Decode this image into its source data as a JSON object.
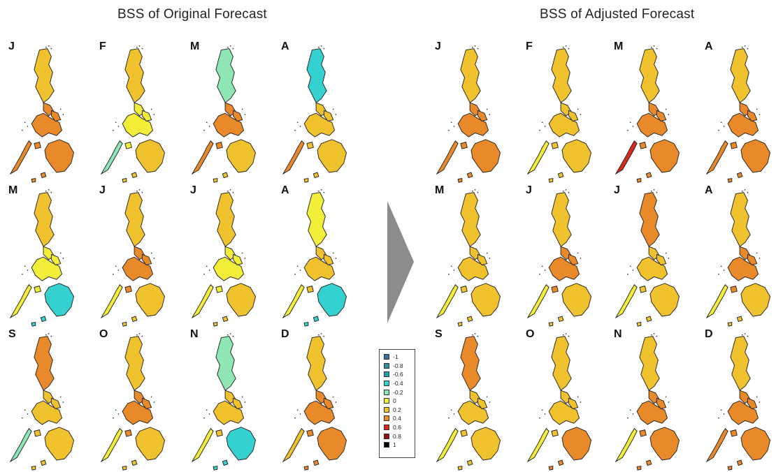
{
  "titles": {
    "left": "BSS of Original Forecast",
    "right": "BSS of Adjusted Forecast"
  },
  "months": [
    "J",
    "F",
    "M",
    "A",
    "M",
    "J",
    "J",
    "A",
    "S",
    "O",
    "N",
    "D"
  ],
  "legend": [
    {
      "label": "-1",
      "color": "#3a6f9a"
    },
    {
      "label": "-0.8",
      "color": "#2f8f9a"
    },
    {
      "label": "-0.6",
      "color": "#26a0a8"
    },
    {
      "label": "-0.4",
      "color": "#35d0d0"
    },
    {
      "label": "-0.2",
      "color": "#8ee6b4"
    },
    {
      "label": "0",
      "color": "#f2ee3a"
    },
    {
      "label": "0.2",
      "color": "#f0c22e"
    },
    {
      "label": "0.4",
      "color": "#e98a2a"
    },
    {
      "label": "0.6",
      "color": "#d62a1e"
    },
    {
      "label": "0.8",
      "color": "#8e1414"
    },
    {
      "label": "1",
      "color": "#000000"
    }
  ],
  "panels": {
    "original": [
      {
        "north": "#f0c22e",
        "central": "#e98a2a",
        "south": "#e98a2a",
        "west": "#e98a2a"
      },
      {
        "north": "#f0c22e",
        "central": "#f2ee3a",
        "south": "#f0c22e",
        "west": "#8ee6b4"
      },
      {
        "north": "#8ee6b4",
        "central": "#e98a2a",
        "south": "#f0c22e",
        "west": "#e98a2a"
      },
      {
        "north": "#35d0d0",
        "central": "#f0c22e",
        "south": "#f0c22e",
        "west": "#e98a2a"
      },
      {
        "north": "#f0c22e",
        "central": "#f2ee3a",
        "south": "#35d0d0",
        "west": "#f2ee3a"
      },
      {
        "north": "#f0c22e",
        "central": "#e98a2a",
        "south": "#f0c22e",
        "west": "#f2ee3a"
      },
      {
        "north": "#f0c22e",
        "central": "#f2ee3a",
        "south": "#f0c22e",
        "west": "#f2ee3a"
      },
      {
        "north": "#f2ee3a",
        "central": "#f0c22e",
        "south": "#35d0d0",
        "west": "#f2ee3a"
      },
      {
        "north": "#e98a2a",
        "central": "#f0c22e",
        "south": "#f0c22e",
        "west": "#8ee6b4"
      },
      {
        "north": "#f0c22e",
        "central": "#e98a2a",
        "south": "#f0c22e",
        "west": "#f2ee3a"
      },
      {
        "north": "#8ee6b4",
        "central": "#f0c22e",
        "south": "#35d0d0",
        "west": "#f2ee3a"
      },
      {
        "north": "#f0c22e",
        "central": "#e98a2a",
        "south": "#e98a2a",
        "west": "#f0c22e"
      }
    ],
    "adjusted": [
      {
        "north": "#f0c22e",
        "central": "#e98a2a",
        "south": "#e98a2a",
        "west": "#e98a2a"
      },
      {
        "north": "#f0c22e",
        "central": "#f0c22e",
        "south": "#f0c22e",
        "west": "#f2ee3a"
      },
      {
        "north": "#f0c22e",
        "central": "#e98a2a",
        "south": "#e98a2a",
        "west": "#d62a1e"
      },
      {
        "north": "#f0c22e",
        "central": "#e98a2a",
        "south": "#e98a2a",
        "west": "#e98a2a"
      },
      {
        "north": "#f0c22e",
        "central": "#f0c22e",
        "south": "#f0c22e",
        "west": "#f2ee3a"
      },
      {
        "north": "#f0c22e",
        "central": "#e98a2a",
        "south": "#f0c22e",
        "west": "#f2ee3a"
      },
      {
        "north": "#e98a2a",
        "central": "#f0c22e",
        "south": "#f0c22e",
        "west": "#f2ee3a"
      },
      {
        "north": "#f0c22e",
        "central": "#e98a2a",
        "south": "#f0c22e",
        "west": "#f2ee3a"
      },
      {
        "north": "#e98a2a",
        "central": "#f0c22e",
        "south": "#f0c22e",
        "west": "#f2ee3a"
      },
      {
        "north": "#f0c22e",
        "central": "#f0c22e",
        "south": "#e98a2a",
        "west": "#f2ee3a"
      },
      {
        "north": "#f0c22e",
        "central": "#e98a2a",
        "south": "#e98a2a",
        "west": "#f2ee3a"
      },
      {
        "north": "#f0c22e",
        "central": "#e98a2a",
        "south": "#e98a2a",
        "west": "#e98a2a"
      }
    ]
  }
}
